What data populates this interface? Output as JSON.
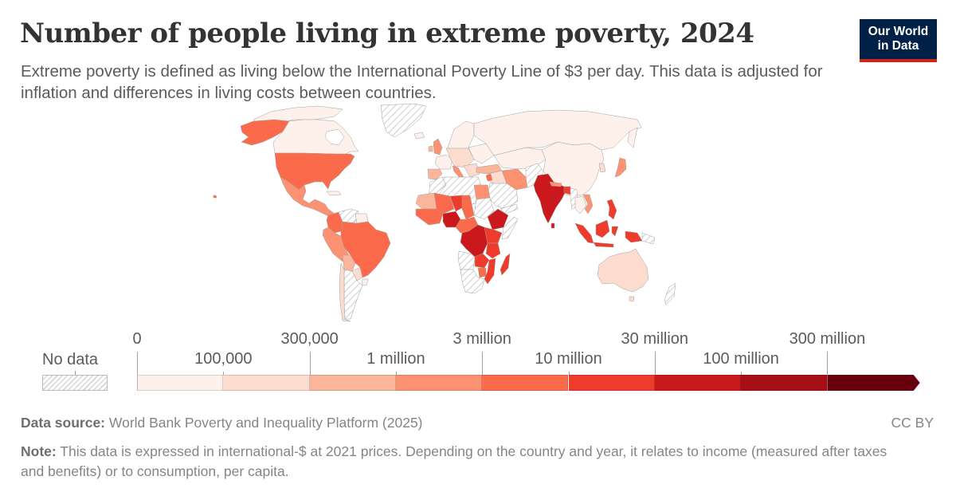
{
  "header": {
    "title": "Number of people living in extreme poverty, 2024",
    "subtitle": "Extreme poverty is defined as living below the International Poverty Line of $3 per day. This data is adjusted for inflation and differences in living costs between countries."
  },
  "logo": {
    "line1": "Our World",
    "line2": "in Data",
    "bg_color": "#002147",
    "accent_color": "#ce261e"
  },
  "legend": {
    "no_data_label": "No data",
    "tick_labels_top": [
      "0",
      "300,000",
      "3 million",
      "30 million",
      "300 million"
    ],
    "tick_labels_bottom": [
      "100,000",
      "1 million",
      "10 million",
      "100 million"
    ],
    "bins": [
      {
        "range": "0–100,000",
        "color": "#fef1ec"
      },
      {
        "range": "100,000–300,000",
        "color": "#fcdccf"
      },
      {
        "range": "300,000–1 million",
        "color": "#fbb59b"
      },
      {
        "range": "1–3 million",
        "color": "#fc9272"
      },
      {
        "range": "3–10 million",
        "color": "#fb6a4a"
      },
      {
        "range": "10–30 million",
        "color": "#ef3b2c"
      },
      {
        "range": "30–100 million",
        "color": "#cb181d"
      },
      {
        "range": "100–300 million",
        "color": "#a50f15"
      },
      {
        "range": ">300 million",
        "color": "#67000d"
      }
    ],
    "no_data_color": "#e0e0e0"
  },
  "footer": {
    "source_label": "Data source:",
    "source_text": "World Bank Poverty and Inequality Platform (2025)",
    "license": "CC BY",
    "note_label": "Note:",
    "note_text": "This data is expressed in international-$ at 2021 prices. Depending on the country and year, it relates to income (measured after taxes and benefits) or to consumption, per capita."
  },
  "chart_data": {
    "type": "choropleth",
    "title": "Number of people living in extreme poverty, 2024",
    "year": 2024,
    "unit": "people",
    "scale": {
      "breaks": [
        0,
        100000,
        300000,
        1000000,
        3000000,
        10000000,
        30000000,
        100000000,
        300000000
      ],
      "colors": [
        "#fef1ec",
        "#fcdccf",
        "#fbb59b",
        "#fc9272",
        "#fb6a4a",
        "#ef3b2c",
        "#cb181d",
        "#a50f15",
        "#67000d"
      ]
    },
    "regions": [
      {
        "name": "Canada",
        "bin": "0–100,000"
      },
      {
        "name": "United States",
        "bin": "3–10 million"
      },
      {
        "name": "Mexico",
        "bin": "1–3 million"
      },
      {
        "name": "Central America",
        "bin": "1–3 million"
      },
      {
        "name": "Greenland",
        "bin": "No data"
      },
      {
        "name": "Colombia",
        "bin": "3–10 million"
      },
      {
        "name": "Venezuela",
        "bin": "No data"
      },
      {
        "name": "Peru",
        "bin": "1–3 million"
      },
      {
        "name": "Brazil",
        "bin": "3–10 million"
      },
      {
        "name": "Bolivia",
        "bin": "300,000–1 million"
      },
      {
        "name": "Argentina",
        "bin": "No data"
      },
      {
        "name": "Chile",
        "bin": "100,000–300,000"
      },
      {
        "name": "United Kingdom",
        "bin": "1–3 million"
      },
      {
        "name": "Spain",
        "bin": "300,000–1 million"
      },
      {
        "name": "Italy",
        "bin": "1–3 million"
      },
      {
        "name": "Russia",
        "bin": "0–100,000"
      },
      {
        "name": "Turkey",
        "bin": "300,000–1 million"
      },
      {
        "name": "Iran",
        "bin": "1–3 million"
      },
      {
        "name": "Egypt",
        "bin": "1–3 million"
      },
      {
        "name": "Nigeria",
        "bin": "30–100 million"
      },
      {
        "name": "Ethiopia",
        "bin": "30–100 million"
      },
      {
        "name": "DR Congo",
        "bin": "30–100 million"
      },
      {
        "name": "Madagascar",
        "bin": "10–30 million"
      },
      {
        "name": "Tanzania",
        "bin": "10–30 million"
      },
      {
        "name": "Kenya",
        "bin": "10–30 million"
      },
      {
        "name": "India",
        "bin": "30–100 million"
      },
      {
        "name": "Bangladesh",
        "bin": "10–30 million"
      },
      {
        "name": "China",
        "bin": "0–100,000"
      },
      {
        "name": "Japan",
        "bin": "1–3 million"
      },
      {
        "name": "Philippines",
        "bin": "10–30 million"
      },
      {
        "name": "Indonesia",
        "bin": "10–30 million"
      },
      {
        "name": "Vietnam",
        "bin": "1–3 million"
      },
      {
        "name": "Australia",
        "bin": "100,000–300,000"
      },
      {
        "name": "Saudi Arabia",
        "bin": "No data"
      },
      {
        "name": "Algeria/Libya",
        "bin": "No data"
      },
      {
        "name": "Southern Africa",
        "bin": "No data"
      }
    ]
  }
}
